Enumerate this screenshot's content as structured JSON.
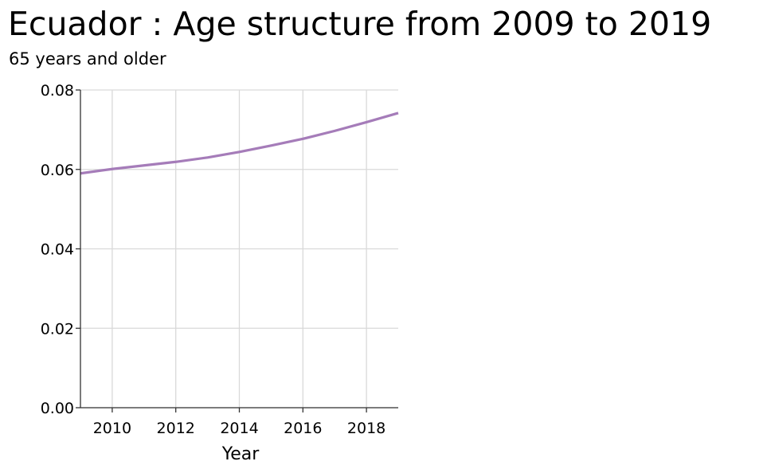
{
  "chart_data": {
    "type": "line",
    "title": "Ecuador : Age structure from 2009 to 2019",
    "subtitle": "65 years and older",
    "xlabel": "Year",
    "ylabel": "",
    "xlim": [
      2009,
      2019
    ],
    "ylim": [
      0,
      0.08
    ],
    "x_ticks": [
      2010,
      2012,
      2014,
      2016,
      2018
    ],
    "x_tick_labels": [
      "2010",
      "2012",
      "2014",
      "2016",
      "2018"
    ],
    "y_ticks": [
      0,
      0.02,
      0.04,
      0.06,
      0.08
    ],
    "y_tick_labels": [
      "0.00",
      "0.02",
      "0.04",
      "0.06",
      "0.08"
    ],
    "grid": true,
    "legend": "none",
    "series": [
      {
        "color": "#a57cb9",
        "x": [
          2009,
          2010,
          2011,
          2012,
          2013,
          2014,
          2015,
          2016,
          2017,
          2018,
          2019
        ],
        "values": [
          0.059,
          0.0601,
          0.061,
          0.0619,
          0.063,
          0.0644,
          0.066,
          0.0677,
          0.0697,
          0.0719,
          0.0742
        ]
      }
    ]
  }
}
